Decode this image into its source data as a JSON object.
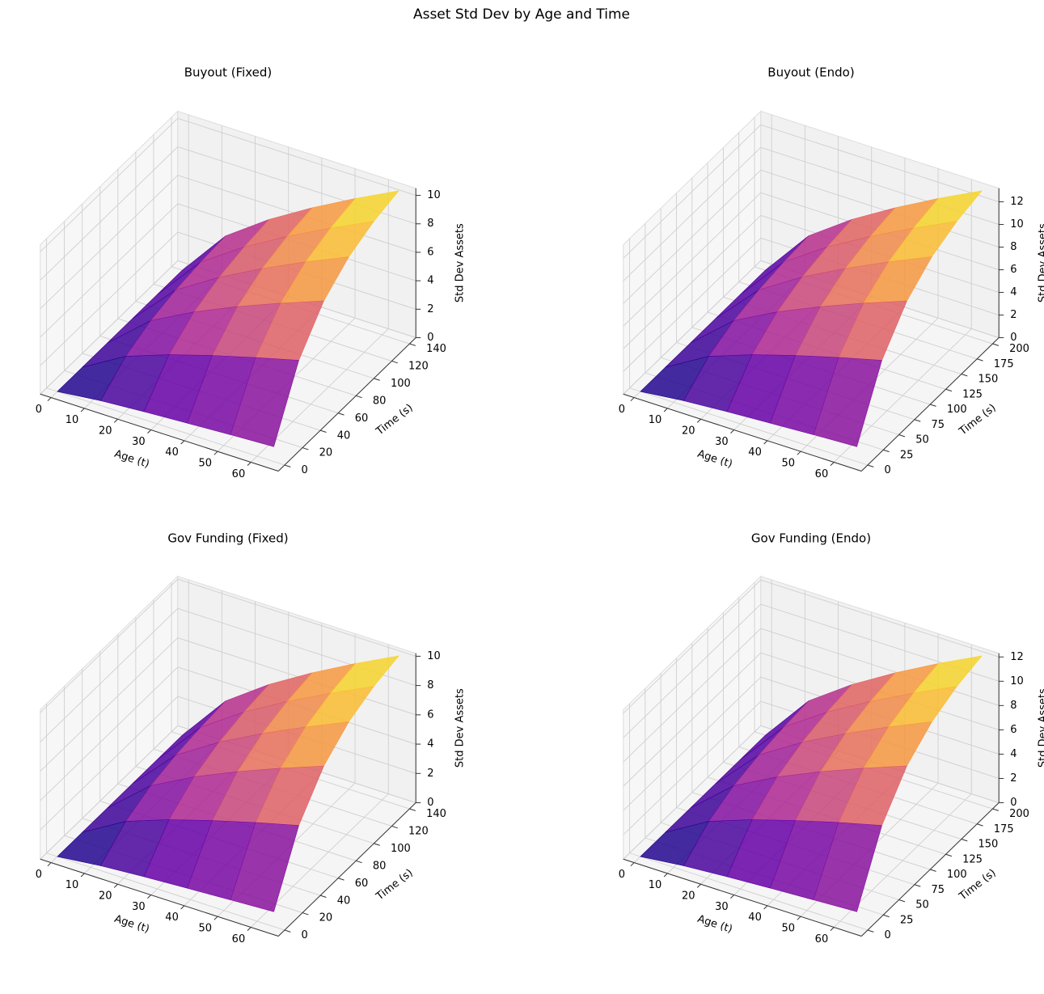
{
  "title": "Asset Std Dev by Age and Time",
  "chart_data": [
    {
      "type": "surface",
      "title": "Buyout (Fixed)",
      "xlabel": "Age (t)",
      "ylabel": "Time (s)",
      "zlabel": "Std Dev Assets",
      "colormap": "plasma",
      "x": [
        0,
        13,
        26,
        39,
        52,
        65
      ],
      "y": [
        0,
        28,
        56,
        84,
        112,
        140
      ],
      "z": [
        [
          0,
          0,
          0,
          0,
          0,
          0
        ],
        [
          0.34,
          1.75,
          2.55,
          3.0,
          3.26,
          3.4
        ],
        [
          0.55,
          2.85,
          4.15,
          4.88,
          5.3,
          5.53
        ],
        [
          0.73,
          3.78,
          5.51,
          6.48,
          7.03,
          7.34
        ],
        [
          0.9,
          4.62,
          6.73,
          7.93,
          8.6,
          8.98
        ],
        [
          1.05,
          5.41,
          7.88,
          9.27,
          10.06,
          10.5
        ]
      ],
      "xlim": [
        -3.25,
        68.25
      ],
      "ylim": [
        -7,
        147
      ],
      "zlim": [
        0,
        10.5
      ],
      "xticks": [
        0,
        10,
        20,
        30,
        40,
        50,
        60
      ],
      "yticks": [
        0,
        20,
        40,
        60,
        80,
        100,
        120,
        140
      ],
      "zticks": [
        0,
        2,
        4,
        6,
        8,
        10
      ]
    },
    {
      "type": "surface",
      "title": "Buyout (Endo)",
      "xlabel": "Age (t)",
      "ylabel": "Time (s)",
      "zlabel": "Std Dev Assets",
      "colormap": "plasma",
      "x": [
        0,
        13,
        26,
        39,
        52,
        65
      ],
      "y": [
        0,
        40,
        80,
        120,
        160,
        200
      ],
      "z": [
        [
          0,
          0,
          0,
          0,
          0,
          0
        ],
        [
          0.43,
          2.2,
          3.21,
          3.78,
          4.1,
          4.28
        ],
        [
          0.7,
          3.58,
          5.22,
          6.15,
          6.67,
          6.96
        ],
        [
          0.92,
          4.75,
          6.92,
          8.15,
          8.84,
          9.23
        ],
        [
          1.13,
          5.81,
          8.47,
          9.97,
          10.82,
          11.29
        ],
        [
          1.32,
          6.8,
          9.9,
          11.66,
          12.65,
          13.2
        ]
      ],
      "xlim": [
        -3.25,
        68.25
      ],
      "ylim": [
        -10,
        210
      ],
      "zlim": [
        0,
        13.2
      ],
      "xticks": [
        0,
        10,
        20,
        30,
        40,
        50,
        60
      ],
      "yticks": [
        0,
        25,
        50,
        75,
        100,
        125,
        150,
        175,
        200
      ],
      "zticks": [
        0,
        2,
        4,
        6,
        8,
        10,
        12
      ]
    },
    {
      "type": "surface",
      "title": "Gov Funding (Fixed)",
      "xlabel": "Age (t)",
      "ylabel": "Time (s)",
      "zlabel": "Std Dev Assets",
      "colormap": "plasma",
      "x": [
        0,
        13,
        26,
        39,
        52,
        65
      ],
      "y": [
        0,
        28,
        56,
        84,
        112,
        140
      ],
      "z": [
        [
          0,
          0,
          0,
          0,
          0,
          0
        ],
        [
          0.33,
          1.7,
          2.48,
          2.91,
          3.16,
          3.3
        ],
        [
          0.54,
          2.77,
          4.04,
          4.75,
          5.15,
          5.38
        ],
        [
          0.71,
          3.67,
          5.35,
          6.3,
          6.83,
          7.13
        ],
        [
          0.87,
          4.49,
          6.54,
          7.7,
          8.35,
          8.72
        ],
        [
          1.02,
          5.25,
          7.65,
          9.01,
          9.77,
          10.2
        ]
      ],
      "xlim": [
        -3.25,
        68.25
      ],
      "ylim": [
        -7,
        147
      ],
      "zlim": [
        0,
        10.2
      ],
      "xticks": [
        0,
        10,
        20,
        30,
        40,
        50,
        60
      ],
      "yticks": [
        0,
        20,
        40,
        60,
        80,
        100,
        120,
        140
      ],
      "zticks": [
        0,
        2,
        4,
        6,
        8,
        10
      ]
    },
    {
      "type": "surface",
      "title": "Gov Funding (Endo)",
      "xlabel": "Age (t)",
      "ylabel": "Time (s)",
      "zlabel": "Std Dev Assets",
      "colormap": "plasma",
      "x": [
        0,
        13,
        26,
        39,
        52,
        65
      ],
      "y": [
        0,
        40,
        80,
        120,
        160,
        200
      ],
      "z": [
        [
          0,
          0,
          0,
          0,
          0,
          0
        ],
        [
          0.4,
          2.05,
          2.99,
          3.52,
          3.82,
          3.99
        ],
        [
          0.65,
          3.34,
          4.86,
          5.72,
          6.21,
          6.48
        ],
        [
          0.86,
          4.43,
          6.45,
          7.59,
          8.24,
          8.6
        ],
        [
          1.05,
          5.42,
          7.89,
          9.29,
          10.08,
          10.52
        ],
        [
          1.23,
          6.33,
          9.23,
          10.86,
          11.78,
          12.3
        ]
      ],
      "xlim": [
        -3.25,
        68.25
      ],
      "ylim": [
        -10,
        210
      ],
      "zlim": [
        0,
        12.3
      ],
      "xticks": [
        0,
        10,
        20,
        30,
        40,
        50,
        60
      ],
      "yticks": [
        0,
        25,
        50,
        75,
        100,
        125,
        150,
        175,
        200
      ],
      "zticks": [
        0,
        2,
        4,
        6,
        8,
        10,
        12
      ]
    }
  ]
}
